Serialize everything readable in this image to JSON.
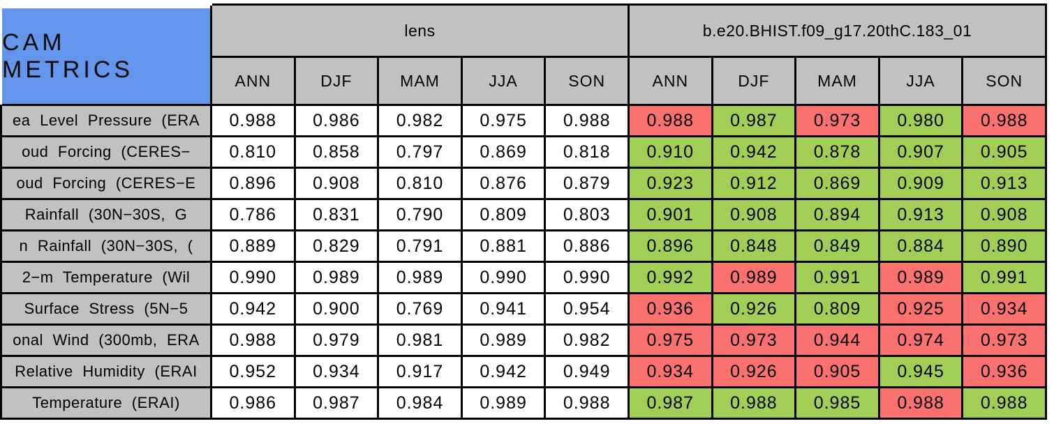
{
  "chart_data": {
    "type": "table",
    "title": "CAM METRICS",
    "column_groups": [
      "lens",
      "b.e20.BHIST.f09_g17.20thC.183_01"
    ],
    "seasons": [
      "ANN",
      "DJF",
      "MAM",
      "JJA",
      "SON"
    ],
    "legend_note_colors": {
      "green_cell": "case value higher than lens",
      "red_cell": "case value lower than lens"
    },
    "rows": [
      {
        "label": "ea Level Pressure (ERA",
        "lens": [
          "0.988",
          "0.986",
          "0.982",
          "0.975",
          "0.988"
        ],
        "model": [
          "0.988",
          "0.987",
          "0.973",
          "0.980",
          "0.988"
        ],
        "model_colors": [
          "red",
          "green",
          "red",
          "green",
          "red"
        ]
      },
      {
        "label": "oud Forcing (CERES−",
        "lens": [
          "0.810",
          "0.858",
          "0.797",
          "0.869",
          "0.818"
        ],
        "model": [
          "0.910",
          "0.942",
          "0.878",
          "0.907",
          "0.905"
        ],
        "model_colors": [
          "green",
          "green",
          "green",
          "green",
          "green"
        ]
      },
      {
        "label": "oud Forcing (CERES−E",
        "lens": [
          "0.896",
          "0.908",
          "0.810",
          "0.876",
          "0.879"
        ],
        "model": [
          "0.923",
          "0.912",
          "0.869",
          "0.909",
          "0.913"
        ],
        "model_colors": [
          "green",
          "green",
          "green",
          "green",
          "green"
        ]
      },
      {
        "label": "Rainfall (30N−30S, G",
        "lens": [
          "0.786",
          "0.831",
          "0.790",
          "0.809",
          "0.803"
        ],
        "model": [
          "0.901",
          "0.908",
          "0.894",
          "0.913",
          "0.908"
        ],
        "model_colors": [
          "green",
          "green",
          "green",
          "green",
          "green"
        ]
      },
      {
        "label": "n Rainfall (30N−30S, (",
        "lens": [
          "0.889",
          "0.829",
          "0.791",
          "0.881",
          "0.886"
        ],
        "model": [
          "0.896",
          "0.848",
          "0.849",
          "0.884",
          "0.890"
        ],
        "model_colors": [
          "green",
          "green",
          "green",
          "green",
          "green"
        ]
      },
      {
        "label": "2−m Temperature (Wil",
        "lens": [
          "0.990",
          "0.989",
          "0.989",
          "0.990",
          "0.990"
        ],
        "model": [
          "0.992",
          "0.989",
          "0.991",
          "0.989",
          "0.991"
        ],
        "model_colors": [
          "green",
          "red",
          "green",
          "red",
          "green"
        ]
      },
      {
        "label": "Surface Stress (5N−5",
        "lens": [
          "0.942",
          "0.900",
          "0.769",
          "0.941",
          "0.954"
        ],
        "model": [
          "0.936",
          "0.926",
          "0.809",
          "0.925",
          "0.934"
        ],
        "model_colors": [
          "red",
          "green",
          "green",
          "red",
          "red"
        ]
      },
      {
        "label": "onal Wind (300mb, ERA",
        "lens": [
          "0.988",
          "0.979",
          "0.981",
          "0.989",
          "0.982"
        ],
        "model": [
          "0.975",
          "0.973",
          "0.944",
          "0.974",
          "0.973"
        ],
        "model_colors": [
          "red",
          "red",
          "red",
          "red",
          "red"
        ]
      },
      {
        "label": "Relative Humidity (ERAI",
        "lens": [
          "0.952",
          "0.934",
          "0.917",
          "0.942",
          "0.949"
        ],
        "model": [
          "0.934",
          "0.926",
          "0.905",
          "0.945",
          "0.936"
        ],
        "model_colors": [
          "red",
          "red",
          "red",
          "green",
          "red"
        ]
      },
      {
        "label": "Temperature (ERAI)",
        "lens": [
          "0.986",
          "0.987",
          "0.984",
          "0.989",
          "0.988"
        ],
        "model": [
          "0.987",
          "0.988",
          "0.985",
          "0.988",
          "0.988"
        ],
        "model_colors": [
          "green",
          "green",
          "green",
          "red",
          "green"
        ]
      }
    ]
  },
  "colors": {
    "red": "#FA7170",
    "green": "#A3CE56",
    "header_gray": "#C1C1C1",
    "title_blue": "#6495ED",
    "lens_cell_white": "#FFFFFF",
    "grid_black": "#000000"
  }
}
